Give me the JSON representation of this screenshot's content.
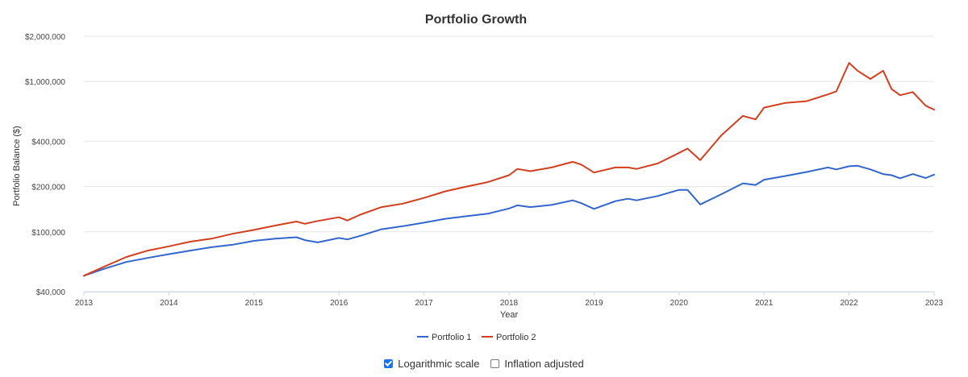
{
  "chart_data": {
    "type": "line",
    "title": "Portfolio Growth",
    "xlabel": "Year",
    "ylabel": "Portfolio Balance ($)",
    "y_scale": "log",
    "ylim": [
      40000,
      2000000
    ],
    "xlim": [
      2013,
      2023
    ],
    "x_tick_labels": [
      "2013",
      "2014",
      "2015",
      "2016",
      "2017",
      "2018",
      "2019",
      "2020",
      "2021",
      "2022",
      "2023"
    ],
    "y_ticks": [
      40000,
      100000,
      200000,
      400000,
      1000000,
      2000000
    ],
    "y_tick_labels": [
      "$40,000",
      "$100,000",
      "$200,000",
      "$400,000",
      "$1,000,000",
      "$2,000,000"
    ],
    "grid": true,
    "legend_position": "bottom",
    "series": [
      {
        "name": "Portfolio 1",
        "color": "#3366cc",
        "points": [
          [
            2013.0,
            51000
          ],
          [
            2013.25,
            57000
          ],
          [
            2013.5,
            63000
          ],
          [
            2013.75,
            67000
          ],
          [
            2014.0,
            71000
          ],
          [
            2014.25,
            75000
          ],
          [
            2014.5,
            79000
          ],
          [
            2014.75,
            82000
          ],
          [
            2015.0,
            87000
          ],
          [
            2015.25,
            90000
          ],
          [
            2015.5,
            92000
          ],
          [
            2015.6,
            88000
          ],
          [
            2015.75,
            85000
          ],
          [
            2016.0,
            91000
          ],
          [
            2016.1,
            89000
          ],
          [
            2016.25,
            94000
          ],
          [
            2016.5,
            104000
          ],
          [
            2016.75,
            109000
          ],
          [
            2017.0,
            115000
          ],
          [
            2017.25,
            122000
          ],
          [
            2017.5,
            127000
          ],
          [
            2017.75,
            132000
          ],
          [
            2018.0,
            143000
          ],
          [
            2018.1,
            150000
          ],
          [
            2018.25,
            146000
          ],
          [
            2018.5,
            151000
          ],
          [
            2018.75,
            162000
          ],
          [
            2018.85,
            155000
          ],
          [
            2019.0,
            142000
          ],
          [
            2019.25,
            160000
          ],
          [
            2019.4,
            166000
          ],
          [
            2019.5,
            162000
          ],
          [
            2019.75,
            173000
          ],
          [
            2020.0,
            190000
          ],
          [
            2020.1,
            190000
          ],
          [
            2020.25,
            152000
          ],
          [
            2020.5,
            178000
          ],
          [
            2020.75,
            210000
          ],
          [
            2020.9,
            205000
          ],
          [
            2021.0,
            222000
          ],
          [
            2021.25,
            235000
          ],
          [
            2021.5,
            250000
          ],
          [
            2021.75,
            268000
          ],
          [
            2021.85,
            260000
          ],
          [
            2022.0,
            273000
          ],
          [
            2022.1,
            275000
          ],
          [
            2022.25,
            260000
          ],
          [
            2022.4,
            242000
          ],
          [
            2022.5,
            238000
          ],
          [
            2022.6,
            227000
          ],
          [
            2022.75,
            242000
          ],
          [
            2022.9,
            228000
          ],
          [
            2023.0,
            240000
          ]
        ]
      },
      {
        "name": "Portfolio 2",
        "color": "#d23f1f",
        "points": [
          [
            2013.0,
            51000
          ],
          [
            2013.25,
            59000
          ],
          [
            2013.5,
            68000
          ],
          [
            2013.75,
            75000
          ],
          [
            2014.0,
            80000
          ],
          [
            2014.25,
            86000
          ],
          [
            2014.5,
            90000
          ],
          [
            2014.75,
            97000
          ],
          [
            2015.0,
            103000
          ],
          [
            2015.25,
            110000
          ],
          [
            2015.5,
            117000
          ],
          [
            2015.6,
            113000
          ],
          [
            2015.75,
            118000
          ],
          [
            2016.0,
            125000
          ],
          [
            2016.1,
            119000
          ],
          [
            2016.25,
            130000
          ],
          [
            2016.5,
            146000
          ],
          [
            2016.75,
            154000
          ],
          [
            2017.0,
            168000
          ],
          [
            2017.25,
            186000
          ],
          [
            2017.5,
            200000
          ],
          [
            2017.75,
            214000
          ],
          [
            2018.0,
            238000
          ],
          [
            2018.1,
            262000
          ],
          [
            2018.25,
            253000
          ],
          [
            2018.5,
            268000
          ],
          [
            2018.75,
            292000
          ],
          [
            2018.85,
            280000
          ],
          [
            2019.0,
            248000
          ],
          [
            2019.25,
            268000
          ],
          [
            2019.4,
            268000
          ],
          [
            2019.5,
            262000
          ],
          [
            2019.75,
            285000
          ],
          [
            2020.0,
            335000
          ],
          [
            2020.1,
            358000
          ],
          [
            2020.25,
            300000
          ],
          [
            2020.5,
            440000
          ],
          [
            2020.75,
            590000
          ],
          [
            2020.9,
            560000
          ],
          [
            2021.0,
            670000
          ],
          [
            2021.25,
            720000
          ],
          [
            2021.5,
            740000
          ],
          [
            2021.75,
            820000
          ],
          [
            2021.85,
            860000
          ],
          [
            2022.0,
            1330000
          ],
          [
            2022.1,
            1180000
          ],
          [
            2022.25,
            1040000
          ],
          [
            2022.4,
            1180000
          ],
          [
            2022.5,
            890000
          ],
          [
            2022.6,
            810000
          ],
          [
            2022.75,
            850000
          ],
          [
            2022.9,
            690000
          ],
          [
            2023.0,
            650000
          ]
        ]
      }
    ]
  },
  "controls": {
    "log_scale": {
      "label": "Logarithmic scale",
      "checked": true
    },
    "inflation_adjusted": {
      "label": "Inflation adjusted",
      "checked": false
    }
  }
}
